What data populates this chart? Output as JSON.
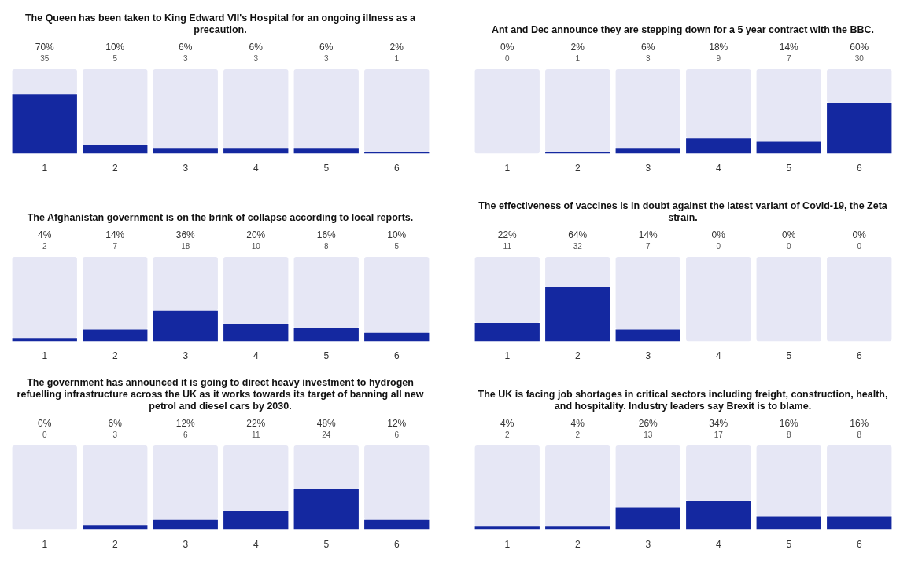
{
  "chart_data": [
    {
      "type": "bar",
      "title": "The Queen has been taken to King Edward VII's Hospital for an ongoing illness as a precaution.",
      "categories": [
        "1",
        "2",
        "3",
        "4",
        "5",
        "6"
      ],
      "stacked": true,
      "ylim": [
        0,
        100
      ],
      "tick_labels": "x",
      "grid": false,
      "legend": false,
      "series": [
        {
          "color": "#1428a0",
          "values": [
            70,
            10,
            6,
            6,
            6,
            2
          ],
          "value_labels": [
            "70%",
            "10%",
            "6%",
            "6%",
            "6%",
            "2%"
          ]
        },
        {
          "color": "#e6e7f5",
          "values": [
            30,
            90,
            94,
            94,
            94,
            98
          ]
        }
      ],
      "annotations": [
        "35",
        "5",
        "3",
        "3",
        "3",
        "1"
      ]
    },
    {
      "type": "bar",
      "title": "Ant and Dec announce they are stepping down for a 5 year contract with the BBC.",
      "categories": [
        "1",
        "2",
        "3",
        "4",
        "5",
        "6"
      ],
      "stacked": true,
      "ylim": [
        0,
        100
      ],
      "tick_labels": "x",
      "grid": false,
      "legend": false,
      "series": [
        {
          "color": "#1428a0",
          "values": [
            0,
            2,
            6,
            18,
            14,
            60
          ],
          "value_labels": [
            "0%",
            "2%",
            "6%",
            "18%",
            "14%",
            "60%"
          ]
        },
        {
          "color": "#e6e7f5",
          "values": [
            100,
            98,
            94,
            82,
            86,
            40
          ]
        }
      ],
      "annotations": [
        "0",
        "1",
        "3",
        "9",
        "7",
        "30"
      ]
    },
    {
      "type": "bar",
      "title": "The Afghanistan government is on the brink of collapse according to local reports.",
      "categories": [
        "1",
        "2",
        "3",
        "4",
        "5",
        "6"
      ],
      "stacked": true,
      "ylim": [
        0,
        100
      ],
      "tick_labels": "x",
      "grid": false,
      "legend": false,
      "series": [
        {
          "color": "#1428a0",
          "values": [
            4,
            14,
            36,
            20,
            16,
            10
          ],
          "value_labels": [
            "4%",
            "14%",
            "36%",
            "20%",
            "16%",
            "10%"
          ]
        },
        {
          "color": "#e6e7f5",
          "values": [
            96,
            86,
            64,
            80,
            84,
            90
          ]
        }
      ],
      "annotations": [
        "2",
        "7",
        "18",
        "10",
        "8",
        "5"
      ]
    },
    {
      "type": "bar",
      "title": "The effectiveness of vaccines is in doubt against the latest variant of Covid-19, the Zeta strain.",
      "categories": [
        "1",
        "2",
        "3",
        "4",
        "5",
        "6"
      ],
      "stacked": true,
      "ylim": [
        0,
        100
      ],
      "tick_labels": "x",
      "grid": false,
      "legend": false,
      "series": [
        {
          "color": "#1428a0",
          "values": [
            22,
            64,
            14,
            0,
            0,
            0
          ],
          "value_labels": [
            "22%",
            "64%",
            "14%",
            "0%",
            "0%",
            "0%"
          ]
        },
        {
          "color": "#e6e7f5",
          "values": [
            78,
            36,
            86,
            100,
            100,
            100
          ]
        }
      ],
      "annotations": [
        "11",
        "32",
        "7",
        "0",
        "0",
        "0"
      ]
    },
    {
      "type": "bar",
      "title": "The government has announced it is going to direct heavy investment to hydrogen refuelling infrastructure across the UK as it works towards its target of banning all new petrol and diesel cars by 2030.",
      "categories": [
        "1",
        "2",
        "3",
        "4",
        "5",
        "6"
      ],
      "stacked": true,
      "ylim": [
        0,
        100
      ],
      "tick_labels": "x",
      "grid": false,
      "legend": false,
      "series": [
        {
          "color": "#1428a0",
          "values": [
            0,
            6,
            12,
            22,
            48,
            12
          ],
          "value_labels": [
            "0%",
            "6%",
            "12%",
            "22%",
            "48%",
            "12%"
          ]
        },
        {
          "color": "#e6e7f5",
          "values": [
            100,
            94,
            88,
            78,
            52,
            88
          ]
        }
      ],
      "annotations": [
        "0",
        "3",
        "6",
        "11",
        "24",
        "6"
      ]
    },
    {
      "type": "bar",
      "title": "The UK is facing job shortages in critical sectors including freight, construction, health, and hospitality. Industry leaders say Brexit is to blame.",
      "categories": [
        "1",
        "2",
        "3",
        "4",
        "5",
        "6"
      ],
      "stacked": true,
      "ylim": [
        0,
        100
      ],
      "tick_labels": "x",
      "grid": false,
      "legend": false,
      "series": [
        {
          "color": "#1428a0",
          "values": [
            4,
            4,
            26,
            34,
            16,
            16
          ],
          "value_labels": [
            "4%",
            "4%",
            "26%",
            "34%",
            "16%",
            "16%"
          ]
        },
        {
          "color": "#e6e7f5",
          "values": [
            96,
            96,
            74,
            66,
            84,
            84
          ]
        }
      ],
      "annotations": [
        "2",
        "2",
        "13",
        "17",
        "8",
        "8"
      ]
    }
  ]
}
